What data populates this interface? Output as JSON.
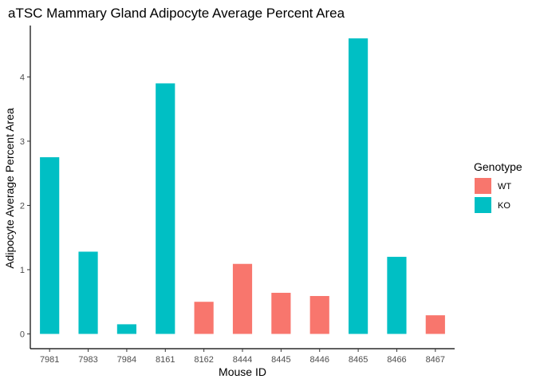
{
  "chart_data": {
    "type": "bar",
    "title": "aTSC Mammary Gland Adipocyte Average Percent Area",
    "xlabel": "Mouse ID",
    "ylabel": "Adipocyte Average Percent Area",
    "ylim": [
      -0.23,
      4.8
    ],
    "yticks": [
      0,
      1,
      2,
      3,
      4
    ],
    "grid": false,
    "legend": {
      "title": "Genotype",
      "placement": "right",
      "entries": [
        {
          "label": "WT",
          "color": "#F8766D"
        },
        {
          "label": "KO",
          "color": "#00BFC4"
        }
      ]
    },
    "categories": [
      "7981",
      "7983",
      "7984",
      "8161",
      "8162",
      "8444",
      "8445",
      "8446",
      "8465",
      "8466",
      "8467"
    ],
    "values": [
      2.75,
      1.28,
      0.15,
      3.9,
      0.5,
      1.09,
      0.64,
      0.59,
      4.6,
      1.2,
      0.29
    ],
    "genotype": [
      "KO",
      "KO",
      "KO",
      "KO",
      "WT",
      "WT",
      "WT",
      "WT",
      "KO",
      "KO",
      "WT"
    ]
  }
}
